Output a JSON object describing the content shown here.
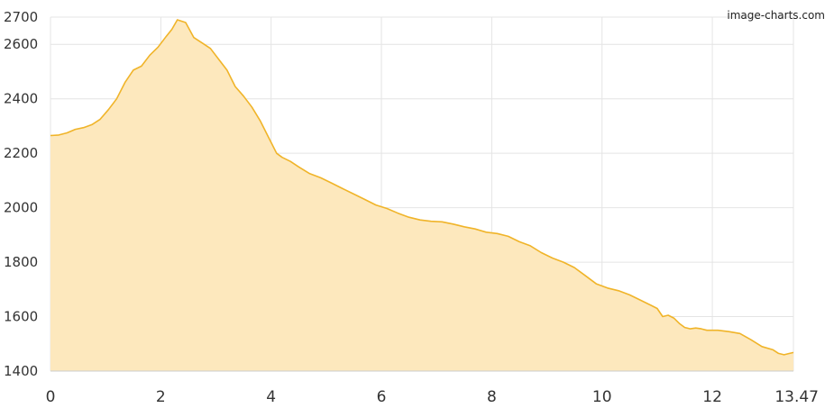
{
  "watermark": "image-charts.com",
  "chart_data": {
    "type": "area",
    "xlim": [
      0,
      13.47
    ],
    "ylim": [
      1400,
      2700
    ],
    "x_ticks": [
      0,
      2,
      4,
      6,
      8,
      10,
      12,
      13.47
    ],
    "x_tick_labels": [
      "0",
      "2",
      "4",
      "6",
      "8",
      "10",
      "12",
      "13.47"
    ],
    "y_ticks": [
      1400,
      1600,
      1800,
      2000,
      2200,
      2400,
      2600,
      2700
    ],
    "y_tick_labels": [
      "1400",
      "1600",
      "1800",
      "2000",
      "2200",
      "2400",
      "2600",
      "2700"
    ],
    "grid": true,
    "legend": "none",
    "line_color": "#f0b429",
    "fill_color": "#fde8bd",
    "x": [
      0,
      0.15,
      0.3,
      0.45,
      0.6,
      0.75,
      0.9,
      1.05,
      1.2,
      1.35,
      1.5,
      1.65,
      1.8,
      1.95,
      2.1,
      2.2,
      2.3,
      2.45,
      2.6,
      2.75,
      2.9,
      3.05,
      3.2,
      3.35,
      3.5,
      3.65,
      3.8,
      3.95,
      4.1,
      4.2,
      4.35,
      4.5,
      4.7,
      4.9,
      5.1,
      5.3,
      5.5,
      5.7,
      5.9,
      6.1,
      6.3,
      6.5,
      6.7,
      6.9,
      7.1,
      7.3,
      7.5,
      7.7,
      7.9,
      8.1,
      8.3,
      8.5,
      8.7,
      8.9,
      9.1,
      9.3,
      9.5,
      9.7,
      9.9,
      10.1,
      10.3,
      10.5,
      10.7,
      10.9,
      11.0,
      11.1,
      11.2,
      11.3,
      11.4,
      11.5,
      11.6,
      11.7,
      11.8,
      11.9,
      12.0,
      12.1,
      12.3,
      12.5,
      12.7,
      12.9,
      13.1,
      13.2,
      13.3,
      13.4,
      13.47
    ],
    "values": [
      2265,
      2267,
      2275,
      2288,
      2294,
      2305,
      2325,
      2360,
      2400,
      2460,
      2505,
      2520,
      2560,
      2590,
      2630,
      2655,
      2690,
      2680,
      2625,
      2605,
      2585,
      2545,
      2505,
      2445,
      2410,
      2370,
      2320,
      2260,
      2200,
      2185,
      2170,
      2150,
      2125,
      2110,
      2090,
      2070,
      2050,
      2030,
      2010,
      1997,
      1980,
      1965,
      1955,
      1950,
      1948,
      1940,
      1930,
      1922,
      1910,
      1905,
      1895,
      1875,
      1860,
      1835,
      1815,
      1800,
      1780,
      1750,
      1720,
      1705,
      1695,
      1680,
      1660,
      1640,
      1630,
      1600,
      1605,
      1595,
      1575,
      1560,
      1555,
      1558,
      1555,
      1550,
      1550,
      1550,
      1545,
      1538,
      1515,
      1490,
      1478,
      1465,
      1460,
      1465,
      1468
    ]
  }
}
